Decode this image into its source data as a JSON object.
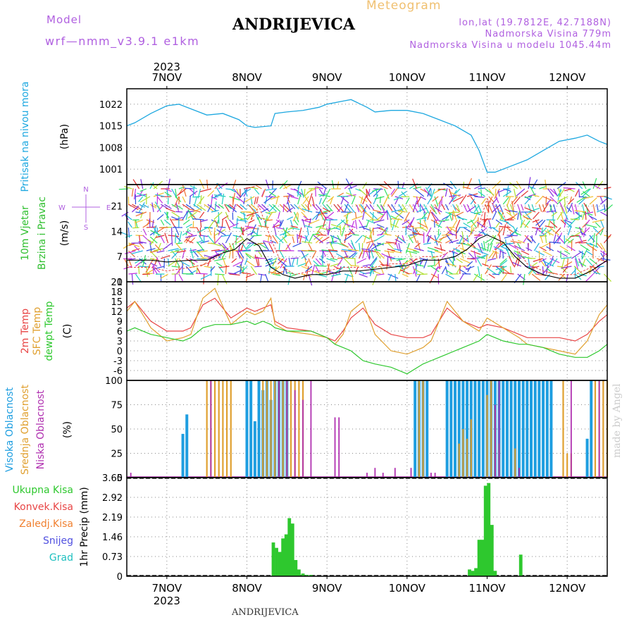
{
  "header": {
    "model_label": "Model",
    "model_name": "wrf—nmm_v3.9.1  e1km",
    "station": "ANDRIJEVICA",
    "product": "Meteogram",
    "coords": "lon,lat (19.7812E, 42.7188N)",
    "altitude": "Nadmorska Visina 779m",
    "model_altitude": "Nadmorska Visina u modelu 1045.44m",
    "footer_station": "ANDRIJEVICA",
    "watermark": "made by Angel"
  },
  "colors": {
    "pressure": "#1ea8e0",
    "wind_label": "#2fbf2f",
    "temp2m": "#e84545",
    "sfc": "#e0a030",
    "dew": "#2ec82e",
    "high_cloud": "#1e9ee0",
    "mid_cloud": "#e0a030",
    "low_cloud": "#b030b0",
    "purple_text": "#b060e0",
    "orange_text": "#f0c070",
    "precip": "#2ec82e",
    "grid": "#888888"
  },
  "chart_data": [
    {
      "type": "line",
      "id": "pressure",
      "ylabel": "Pritisak na nivou mora",
      "unit": "(hPa)",
      "yticks": [
        "1001",
        "1008",
        "1015",
        "1022"
      ],
      "ylim": [
        996,
        1027
      ],
      "x_range_days": [
        6.5,
        12.5
      ],
      "x": [
        6.5,
        6.6,
        6.8,
        7.0,
        7.15,
        7.3,
        7.5,
        7.7,
        7.9,
        8.0,
        8.1,
        8.3,
        8.35,
        8.5,
        8.7,
        8.9,
        9.0,
        9.2,
        9.3,
        9.5,
        9.6,
        9.8,
        10.0,
        10.2,
        10.4,
        10.6,
        10.8,
        10.9,
        11.0,
        11.1,
        11.3,
        11.5,
        11.7,
        11.9,
        12.1,
        12.25,
        12.4,
        12.5
      ],
      "values": [
        1015,
        1016,
        1019,
        1021.5,
        1022,
        1020.5,
        1018.5,
        1019,
        1017,
        1015,
        1014.5,
        1015,
        1019,
        1019.5,
        1020,
        1021,
        1022,
        1023,
        1023.5,
        1021,
        1019.5,
        1020,
        1020,
        1019,
        1017,
        1015,
        1012,
        1007,
        1000,
        1000,
        1002,
        1004,
        1007,
        1010,
        1011,
        1012,
        1010,
        1009
      ]
    },
    {
      "type": "line",
      "id": "wind",
      "ylabel_line1": "10m Vjetar",
      "ylabel_line2": "Brzina i Pravac",
      "unit": "(m/s)",
      "yticks": [
        "0",
        "7",
        "14",
        "21"
      ],
      "ylim": [
        0,
        27
      ],
      "compass_labels": [
        "N",
        "S",
        "W",
        "E"
      ],
      "x_range_days": [
        6.5,
        12.5
      ],
      "x": [
        6.5,
        6.8,
        7.0,
        7.3,
        7.5,
        7.7,
        7.85,
        8.0,
        8.15,
        8.3,
        8.45,
        8.6,
        8.8,
        9.0,
        9.2,
        9.4,
        9.6,
        9.8,
        10.0,
        10.2,
        10.4,
        10.6,
        10.75,
        10.9,
        11.0,
        11.1,
        11.2,
        11.35,
        11.5,
        11.7,
        11.9,
        12.1,
        12.3,
        12.5
      ],
      "speed": [
        6,
        6,
        5.5,
        6,
        6,
        8,
        9,
        12,
        10,
        4,
        2,
        1,
        2,
        2,
        3,
        3,
        3.5,
        4,
        4.5,
        6,
        6,
        7,
        9,
        12,
        13,
        12,
        11,
        7,
        4,
        2,
        1,
        1,
        3,
        6
      ],
      "gust": [
        4,
        4,
        3,
        4,
        5,
        8,
        11,
        15,
        21,
        12,
        4,
        2,
        3,
        3,
        4,
        4,
        4,
        5,
        5,
        7,
        7,
        9,
        12,
        16,
        23,
        21,
        19,
        10,
        5,
        3,
        2,
        2,
        4,
        8
      ]
    },
    {
      "type": "line",
      "id": "temperature",
      "ylabel_lines": [
        "2m Temp",
        "SFC Temp",
        "dewpt Temp"
      ],
      "unit": "(C)",
      "yticks": [
        "21",
        "18",
        "15",
        "12",
        "9",
        "6",
        "3",
        "0",
        "-3",
        "-6"
      ],
      "ylim": [
        -9,
        21
      ],
      "x_range_days": [
        6.5,
        12.5
      ],
      "series": [
        {
          "name": "2m Temp",
          "x": [
            6.5,
            6.6,
            6.8,
            7.0,
            7.2,
            7.3,
            7.45,
            7.6,
            7.8,
            8.0,
            8.1,
            8.2,
            8.3,
            8.35,
            8.5,
            8.8,
            9.0,
            9.1,
            9.2,
            9.3,
            9.45,
            9.6,
            9.8,
            10.0,
            10.2,
            10.3,
            10.5,
            10.7,
            10.9,
            11.0,
            11.2,
            11.4,
            11.5,
            11.7,
            11.9,
            12.1,
            12.25,
            12.4,
            12.5
          ],
          "values": [
            13,
            15,
            9,
            6,
            6,
            7,
            14,
            16,
            10,
            13,
            12,
            13,
            14,
            9,
            7,
            6,
            4,
            3,
            6,
            10,
            13,
            8,
            5,
            4,
            4,
            5,
            13,
            9,
            7,
            8,
            7,
            5,
            4,
            4,
            4,
            3,
            5,
            9,
            11
          ]
        },
        {
          "name": "SFC Temp",
          "x": [
            6.5,
            6.6,
            6.8,
            7.0,
            7.2,
            7.3,
            7.45,
            7.6,
            7.8,
            8.0,
            8.1,
            8.2,
            8.3,
            8.35,
            8.5,
            8.8,
            9.0,
            9.1,
            9.2,
            9.3,
            9.45,
            9.6,
            9.8,
            10.0,
            10.2,
            10.3,
            10.5,
            10.7,
            10.9,
            11.0,
            11.2,
            11.4,
            11.5,
            11.7,
            11.9,
            12.1,
            12.25,
            12.4,
            12.5
          ],
          "values": [
            12,
            15,
            7,
            3,
            4,
            5,
            16,
            19,
            8,
            12,
            11,
            12,
            16,
            8,
            6,
            5,
            4,
            2,
            5,
            12,
            15,
            5,
            0,
            -1,
            1,
            3,
            15,
            9,
            6,
            10,
            7,
            4,
            2,
            1,
            0,
            -1,
            3,
            11,
            14
          ]
        },
        {
          "name": "dewpt Temp",
          "x": [
            6.5,
            6.6,
            6.8,
            7.0,
            7.2,
            7.3,
            7.45,
            7.6,
            7.8,
            8.0,
            8.1,
            8.2,
            8.3,
            8.35,
            8.5,
            8.8,
            9.0,
            9.1,
            9.2,
            9.3,
            9.45,
            9.6,
            9.8,
            10.0,
            10.2,
            10.3,
            10.5,
            10.7,
            10.9,
            11.0,
            11.2,
            11.4,
            11.5,
            11.7,
            11.9,
            12.1,
            12.25,
            12.4,
            12.5
          ],
          "values": [
            6,
            7,
            5,
            4,
            3,
            4,
            7,
            8,
            8,
            9,
            8,
            9,
            8,
            7,
            6,
            6,
            4,
            2,
            1,
            0,
            -3,
            -4,
            -5,
            -7,
            -4,
            -3,
            -1,
            1,
            3,
            5,
            3,
            2,
            2,
            1,
            -1,
            -2,
            -2,
            0,
            2
          ]
        }
      ]
    },
    {
      "type": "bar",
      "id": "cloud",
      "ylabel_lines": [
        "Visoka Oblacnost",
        "Srednja Oblacnost",
        "Niska Oblacnost"
      ],
      "unit": "(%)",
      "yticks": [
        "0",
        "25",
        "50",
        "75",
        "100"
      ],
      "ylim": [
        0,
        100
      ],
      "x_range_days": [
        6.5,
        12.5
      ],
      "series": [
        {
          "name": "Visoka Oblacnost",
          "x": [
            7.2,
            7.25,
            8.0,
            8.05,
            8.1,
            8.15,
            8.2,
            8.25,
            8.3,
            8.35,
            8.4,
            8.45,
            8.5,
            10.1,
            10.15,
            10.2,
            10.25,
            10.5,
            10.55,
            10.6,
            10.65,
            10.7,
            10.75,
            10.8,
            10.85,
            10.9,
            10.95,
            11.0,
            11.05,
            11.1,
            11.15,
            11.2,
            11.25,
            11.3,
            11.35,
            11.4,
            11.45,
            11.5,
            11.55,
            11.6,
            11.65,
            11.7,
            11.75,
            11.8,
            12.25,
            12.3
          ],
          "values": [
            45,
            65,
            100,
            100,
            58,
            100,
            90,
            100,
            80,
            100,
            100,
            100,
            100,
            100,
            100,
            100,
            100,
            100,
            100,
            100,
            100,
            100,
            100,
            100,
            100,
            100,
            100,
            100,
            100,
            100,
            100,
            100,
            100,
            100,
            100,
            100,
            100,
            100,
            100,
            100,
            100,
            100,
            100,
            100,
            40,
            100
          ]
        },
        {
          "name": "Srednja Oblacnost",
          "x": [
            7.5,
            7.55,
            7.6,
            7.65,
            7.7,
            7.75,
            7.8,
            8.2,
            8.25,
            8.3,
            8.35,
            8.4,
            8.45,
            8.5,
            8.55,
            8.6,
            8.65,
            8.7,
            10.15,
            10.2,
            10.65,
            10.7,
            10.75,
            10.8,
            11.0,
            11.05,
            11.1,
            11.15,
            11.35,
            11.95,
            12.0,
            12.05,
            12.35,
            12.4,
            12.45,
            12.5
          ],
          "values": [
            100,
            100,
            100,
            100,
            100,
            100,
            100,
            100,
            100,
            100,
            100,
            100,
            100,
            100,
            100,
            100,
            100,
            100,
            100,
            100,
            35,
            50,
            40,
            60,
            85,
            100,
            70,
            35,
            30,
            100,
            25,
            25,
            100,
            100,
            100,
            100
          ]
        },
        {
          "name": "Niska Oblacnost",
          "x": [
            6.55,
            7.55,
            8.4,
            8.5,
            8.6,
            8.7,
            8.8,
            9.1,
            9.15,
            9.5,
            9.6,
            9.7,
            9.85,
            10.05,
            10.3,
            10.35,
            11.1,
            11.15,
            11.4,
            12.05,
            12.4
          ],
          "values": [
            5,
            100,
            100,
            100,
            90,
            80,
            100,
            62,
            62,
            5,
            10,
            5,
            10,
            10,
            5,
            5,
            75,
            100,
            10,
            100,
            100
          ]
        }
      ]
    },
    {
      "type": "bar",
      "id": "precip",
      "ylabel": "1hr Precip (mm)",
      "legend": [
        "Ukupna Kisa",
        "Konvek.Kisa",
        "Zaledj.Kisa",
        "Snijeg",
        "Grad"
      ],
      "legend_colors": [
        "#2ec82e",
        "#e84545",
        "#f08030",
        "#5050e0",
        "#20c0c0"
      ],
      "yticks": [
        "0",
        "0.73",
        "1.46",
        "2.19",
        "2.92",
        "3.65"
      ],
      "ylim": [
        0,
        3.65
      ],
      "x_range_days": [
        6.5,
        12.5
      ],
      "x": [
        8.33,
        8.37,
        8.41,
        8.45,
        8.49,
        8.53,
        8.57,
        8.61,
        8.65,
        8.7,
        8.75,
        8.8,
        10.78,
        10.82,
        10.86,
        10.9,
        10.94,
        10.98,
        11.02,
        11.06,
        11.1,
        11.42
      ],
      "values": [
        1.25,
        1.05,
        0.9,
        1.4,
        1.55,
        2.15,
        1.95,
        0.6,
        0.25,
        0.1,
        0.05,
        0.05,
        0.25,
        0.2,
        0.3,
        1.35,
        1.35,
        3.35,
        3.45,
        1.9,
        0.2,
        0.8
      ]
    }
  ],
  "x_axis": {
    "top_year": "2023",
    "bottom_year": "2023",
    "days": [
      "7NOV",
      "8NOV",
      "9NOV",
      "10NOV",
      "11NOV",
      "12NOV"
    ],
    "day_positions": [
      7,
      8,
      9,
      10,
      11,
      12
    ]
  }
}
